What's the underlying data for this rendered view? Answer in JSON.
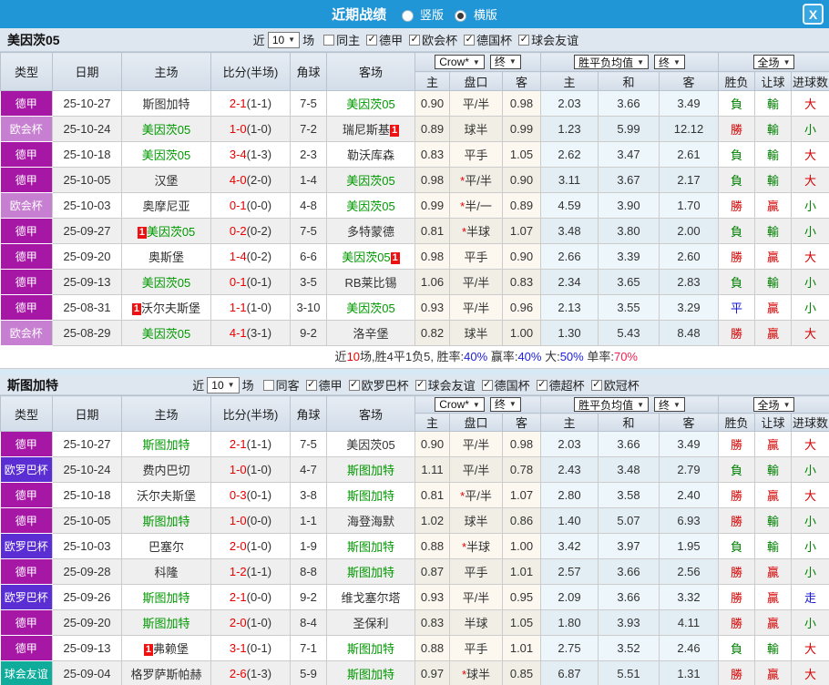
{
  "topbar": {
    "title": "近期战绩",
    "radios": [
      {
        "label": "竖版",
        "selected": false
      },
      {
        "label": "横版",
        "selected": true
      }
    ],
    "close_label": "X"
  },
  "colors": {
    "topbar_bg": "#2196d6",
    "type_colors": {
      "德甲": "#a617a6",
      "欧会杯": "#c77fd1",
      "欧罗巴杯": "#5a2ed2",
      "球会友谊": "#0fac9c"
    },
    "result_colors": {
      "勝": "#d50000",
      "贏": "#d50000",
      "大": "#d50000",
      "負": "#008000",
      "輸": "#008000",
      "小": "#008000",
      "平": "#1515d0",
      "走": "#1515d0"
    },
    "focal_team_green": "#009900",
    "score_red": "#e80000"
  },
  "table_header": {
    "main_cols": [
      "类型",
      "日期",
      "主场",
      "比分(半场)",
      "角球",
      "客场"
    ],
    "groups": [
      {
        "buttons": [
          "Crow*",
          "终"
        ],
        "cols": [
          "主",
          "盘口",
          "客"
        ]
      },
      {
        "buttons": [
          "胜平负均值",
          "终"
        ],
        "cols": [
          "主",
          "和",
          "客"
        ]
      },
      {
        "buttons": [
          "全场"
        ],
        "cols": [
          "胜负",
          "让球",
          "进球数"
        ]
      }
    ]
  },
  "sections": [
    {
      "team": "美因茨05",
      "filter": {
        "near": "近",
        "count": "10",
        "games": "场",
        "same_label": "同主",
        "same_checked": false,
        "leagues": [
          "德甲",
          "欧会杯",
          "德国杯",
          "球会友谊"
        ]
      },
      "rows": [
        {
          "type": "德甲",
          "date": "25-10-27",
          "home": "斯图加特",
          "hg": false,
          "hc": false,
          "ft": "2-1",
          "ht": "(1-1)",
          "corner": "7-5",
          "away": "美因茨05",
          "ag": true,
          "ac": false,
          "o": [
            "0.90",
            "平/半",
            "0.98"
          ],
          "m": [
            "2.03",
            "3.66",
            "3.49"
          ],
          "r": [
            "負",
            "輸",
            "大"
          ]
        },
        {
          "type": "欧会杯",
          "date": "25-10-24",
          "home": "美因茨05",
          "hg": true,
          "hc": false,
          "ft": "1-0",
          "ht": "(1-0)",
          "corner": "7-2",
          "away": "瑞尼斯基",
          "ag": false,
          "ac": true,
          "o": [
            "0.89",
            "球半",
            "0.99"
          ],
          "m": [
            "1.23",
            "5.99",
            "12.12"
          ],
          "r": [
            "勝",
            "輸",
            "小"
          ]
        },
        {
          "type": "德甲",
          "date": "25-10-18",
          "home": "美因茨05",
          "hg": true,
          "hc": false,
          "ft": "3-4",
          "ht": "(1-3)",
          "corner": "2-3",
          "away": "勒沃库森",
          "ag": false,
          "ac": false,
          "o": [
            "0.83",
            "平手",
            "1.05"
          ],
          "m": [
            "2.62",
            "3.47",
            "2.61"
          ],
          "r": [
            "負",
            "輸",
            "大"
          ]
        },
        {
          "type": "德甲",
          "date": "25-10-05",
          "home": "汉堡",
          "hg": false,
          "hc": false,
          "ft": "4-0",
          "ht": "(2-0)",
          "corner": "1-4",
          "away": "美因茨05",
          "ag": true,
          "ac": false,
          "o": [
            "0.98",
            "*平/半",
            "0.90"
          ],
          "m": [
            "3.11",
            "3.67",
            "2.17"
          ],
          "r": [
            "負",
            "輸",
            "大"
          ]
        },
        {
          "type": "欧会杯",
          "date": "25-10-03",
          "home": "奥摩尼亚",
          "hg": false,
          "hc": false,
          "ft": "0-1",
          "ht": "(0-0)",
          "corner": "4-8",
          "away": "美因茨05",
          "ag": true,
          "ac": false,
          "o": [
            "0.99",
            "*半/一",
            "0.89"
          ],
          "m": [
            "4.59",
            "3.90",
            "1.70"
          ],
          "r": [
            "勝",
            "贏",
            "小"
          ]
        },
        {
          "type": "德甲",
          "date": "25-09-27",
          "home": "美因茨05",
          "hg": true,
          "hc": true,
          "ft": "0-2",
          "ht": "(0-2)",
          "corner": "7-5",
          "away": "多特蒙德",
          "ag": false,
          "ac": false,
          "o": [
            "0.81",
            "*半球",
            "1.07"
          ],
          "m": [
            "3.48",
            "3.80",
            "2.00"
          ],
          "r": [
            "負",
            "輸",
            "小"
          ]
        },
        {
          "type": "德甲",
          "date": "25-09-20",
          "home": "奥斯堡",
          "hg": false,
          "hc": false,
          "ft": "1-4",
          "ht": "(0-2)",
          "corner": "6-6",
          "away": "美因茨05",
          "ag": true,
          "ac": true,
          "o": [
            "0.98",
            "平手",
            "0.90"
          ],
          "m": [
            "2.66",
            "3.39",
            "2.60"
          ],
          "r": [
            "勝",
            "贏",
            "大"
          ]
        },
        {
          "type": "德甲",
          "date": "25-09-13",
          "home": "美因茨05",
          "hg": true,
          "hc": false,
          "ft": "0-1",
          "ht": "(0-1)",
          "corner": "3-5",
          "away": "RB莱比锡",
          "ag": false,
          "ac": false,
          "o": [
            "1.06",
            "平/半",
            "0.83"
          ],
          "m": [
            "2.34",
            "3.65",
            "2.83"
          ],
          "r": [
            "負",
            "輸",
            "小"
          ]
        },
        {
          "type": "德甲",
          "date": "25-08-31",
          "home": "沃尔夫斯堡",
          "hg": false,
          "hc": true,
          "ft": "1-1",
          "ht": "(1-0)",
          "corner": "3-10",
          "away": "美因茨05",
          "ag": true,
          "ac": false,
          "o": [
            "0.93",
            "平/半",
            "0.96"
          ],
          "m": [
            "2.13",
            "3.55",
            "3.29"
          ],
          "r": [
            "平",
            "贏",
            "小"
          ]
        },
        {
          "type": "欧会杯",
          "date": "25-08-29",
          "home": "美因茨05",
          "hg": true,
          "hc": false,
          "ft": "4-1",
          "ht": "(3-1)",
          "corner": "9-2",
          "away": "洛辛堡",
          "ag": false,
          "ac": false,
          "o": [
            "0.82",
            "球半",
            "1.00"
          ],
          "m": [
            "1.30",
            "5.43",
            "8.48"
          ],
          "r": [
            "勝",
            "贏",
            "大"
          ]
        }
      ],
      "summary": [
        {
          "t": "近",
          "c": "k"
        },
        {
          "t": "10",
          "c": "r"
        },
        {
          "t": "场,胜4平1负5, 胜率:",
          "c": "k"
        },
        {
          "t": "40%",
          "c": "b"
        },
        {
          "t": " 赢率:",
          "c": "k"
        },
        {
          "t": "40%",
          "c": "b"
        },
        {
          "t": " 大:",
          "c": "k"
        },
        {
          "t": "50%",
          "c": "b"
        },
        {
          "t": " 单率:",
          "c": "k"
        },
        {
          "t": "70%",
          "c": "rp"
        }
      ]
    },
    {
      "team": "斯图加特",
      "filter": {
        "near": "近",
        "count": "10",
        "games": "场",
        "same_label": "同客",
        "same_checked": false,
        "leagues": [
          "德甲",
          "欧罗巴杯",
          "球会友谊",
          "德国杯",
          "德超杯",
          "欧冠杯"
        ]
      },
      "rows": [
        {
          "type": "德甲",
          "date": "25-10-27",
          "home": "斯图加特",
          "hg": true,
          "hc": false,
          "ft": "2-1",
          "ht": "(1-1)",
          "corner": "7-5",
          "away": "美因茨05",
          "ag": false,
          "ac": false,
          "o": [
            "0.90",
            "平/半",
            "0.98"
          ],
          "m": [
            "2.03",
            "3.66",
            "3.49"
          ],
          "r": [
            "勝",
            "贏",
            "大"
          ]
        },
        {
          "type": "欧罗巴杯",
          "date": "25-10-24",
          "home": "费内巴切",
          "hg": false,
          "hc": false,
          "ft": "1-0",
          "ht": "(1-0)",
          "corner": "4-7",
          "away": "斯图加特",
          "ag": true,
          "ac": false,
          "o": [
            "1.11",
            "平/半",
            "0.78"
          ],
          "m": [
            "2.43",
            "3.48",
            "2.79"
          ],
          "r": [
            "負",
            "輸",
            "小"
          ]
        },
        {
          "type": "德甲",
          "date": "25-10-18",
          "home": "沃尔夫斯堡",
          "hg": false,
          "hc": false,
          "ft": "0-3",
          "ht": "(0-1)",
          "corner": "3-8",
          "away": "斯图加特",
          "ag": true,
          "ac": false,
          "o": [
            "0.81",
            "*平/半",
            "1.07"
          ],
          "m": [
            "2.80",
            "3.58",
            "2.40"
          ],
          "r": [
            "勝",
            "贏",
            "大"
          ]
        },
        {
          "type": "德甲",
          "date": "25-10-05",
          "home": "斯图加特",
          "hg": true,
          "hc": false,
          "ft": "1-0",
          "ht": "(0-0)",
          "corner": "1-1",
          "away": "海登海默",
          "ag": false,
          "ac": false,
          "o": [
            "1.02",
            "球半",
            "0.86"
          ],
          "m": [
            "1.40",
            "5.07",
            "6.93"
          ],
          "r": [
            "勝",
            "輸",
            "小"
          ]
        },
        {
          "type": "欧罗巴杯",
          "date": "25-10-03",
          "home": "巴塞尔",
          "hg": false,
          "hc": false,
          "ft": "2-0",
          "ht": "(1-0)",
          "corner": "1-9",
          "away": "斯图加特",
          "ag": true,
          "ac": false,
          "o": [
            "0.88",
            "*半球",
            "1.00"
          ],
          "m": [
            "3.42",
            "3.97",
            "1.95"
          ],
          "r": [
            "負",
            "輸",
            "小"
          ]
        },
        {
          "type": "德甲",
          "date": "25-09-28",
          "home": "科隆",
          "hg": false,
          "hc": false,
          "ft": "1-2",
          "ht": "(1-1)",
          "corner": "8-8",
          "away": "斯图加特",
          "ag": true,
          "ac": false,
          "o": [
            "0.87",
            "平手",
            "1.01"
          ],
          "m": [
            "2.57",
            "3.66",
            "2.56"
          ],
          "r": [
            "勝",
            "贏",
            "小"
          ]
        },
        {
          "type": "欧罗巴杯",
          "date": "25-09-26",
          "home": "斯图加特",
          "hg": true,
          "hc": false,
          "ft": "2-1",
          "ht": "(0-0)",
          "corner": "9-2",
          "away": "维戈塞尔塔",
          "ag": false,
          "ac": false,
          "o": [
            "0.93",
            "平/半",
            "0.95"
          ],
          "m": [
            "2.09",
            "3.66",
            "3.32"
          ],
          "r": [
            "勝",
            "贏",
            "走"
          ]
        },
        {
          "type": "德甲",
          "date": "25-09-20",
          "home": "斯图加特",
          "hg": true,
          "hc": false,
          "ft": "2-0",
          "ht": "(1-0)",
          "corner": "8-4",
          "away": "圣保利",
          "ag": false,
          "ac": false,
          "o": [
            "0.83",
            "半球",
            "1.05"
          ],
          "m": [
            "1.80",
            "3.93",
            "4.11"
          ],
          "r": [
            "勝",
            "贏",
            "小"
          ]
        },
        {
          "type": "德甲",
          "date": "25-09-13",
          "home": "弗赖堡",
          "hg": false,
          "hc": true,
          "ft": "3-1",
          "ht": "(0-1)",
          "corner": "7-1",
          "away": "斯图加特",
          "ag": true,
          "ac": false,
          "o": [
            "0.88",
            "平手",
            "1.01"
          ],
          "m": [
            "2.75",
            "3.52",
            "2.46"
          ],
          "r": [
            "負",
            "輸",
            "大"
          ]
        },
        {
          "type": "球会友谊",
          "date": "25-09-04",
          "home": "格罗萨斯帕赫",
          "hg": false,
          "hc": false,
          "ft": "2-6",
          "ht": "(1-3)",
          "corner": "5-9",
          "away": "斯图加特",
          "ag": true,
          "ac": false,
          "o": [
            "0.97",
            "*球半",
            "0.85"
          ],
          "m": [
            "6.87",
            "5.51",
            "1.31"
          ],
          "r": [
            "勝",
            "贏",
            "大"
          ]
        }
      ],
      "summary": []
    }
  ]
}
